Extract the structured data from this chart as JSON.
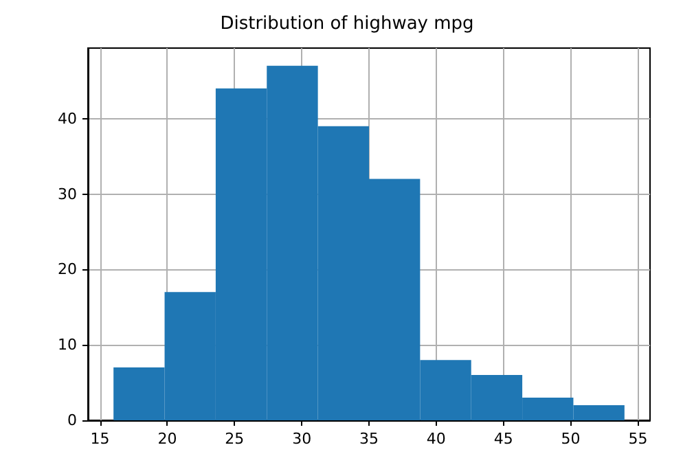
{
  "chart_data": {
    "type": "histogram",
    "title": "Distribution of highway mpg",
    "bins": [
      16,
      19.8,
      23.6,
      27.4,
      31.2,
      35,
      38.8,
      42.6,
      46.4,
      50.2,
      54
    ],
    "values": [
      7,
      17,
      44,
      47,
      39,
      32,
      8,
      6,
      3,
      2
    ],
    "color": "#1f77b4",
    "xlim": [
      14.1,
      55.9
    ],
    "xticks": [
      15,
      20,
      25,
      30,
      35,
      40,
      45,
      50,
      55
    ],
    "ylim": [
      0,
      49.35
    ],
    "yticks": [
      0,
      10,
      20,
      30,
      40
    ],
    "grid": true
  }
}
